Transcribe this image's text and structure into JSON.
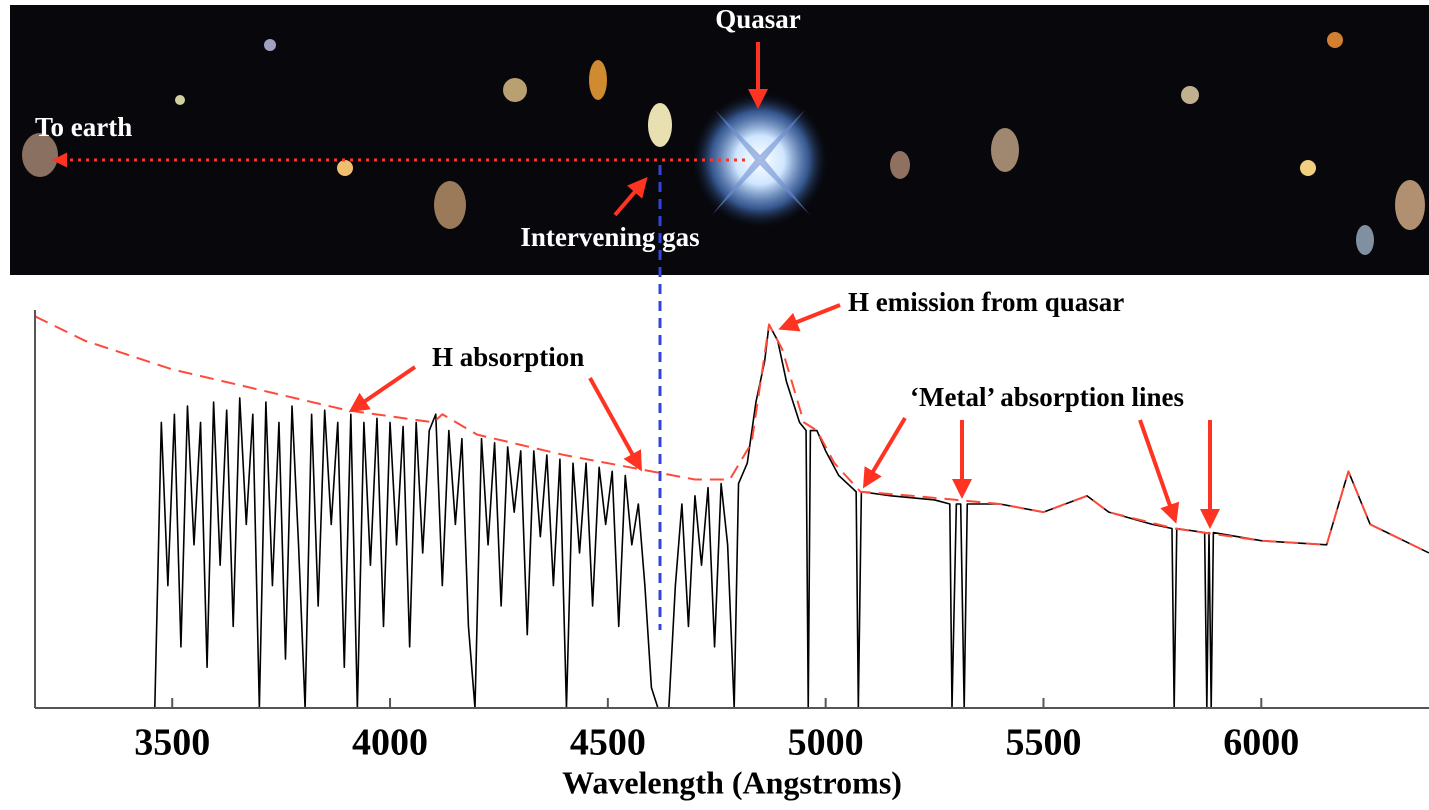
{
  "chart_data": {
    "type": "line",
    "xlabel": "Wavelength (Angstroms)",
    "xlim": [
      3185,
      6385
    ],
    "ylim": [
      0,
      100
    ],
    "xticks": [
      3500,
      4000,
      4500,
      5000,
      5500,
      6000
    ],
    "annotations": [
      "Quasar",
      "To earth",
      "Intervening gas",
      "H emission from quasar",
      "H absorption",
      "‘Metal’ absorption lines"
    ],
    "series": [
      {
        "color": "#ff4a3a",
        "dashed": true,
        "x": [
          3185,
          3300,
          3500,
          3700,
          3900,
          4100,
          4120,
          4200,
          4400,
          4600,
          4700,
          4780,
          4830,
          4870,
          4900,
          4950,
          4980,
          5020,
          5080,
          5200,
          5300,
          5400,
          5500,
          5600,
          5650,
          5800,
          6000,
          6150,
          6200,
          6250,
          6385
        ],
        "values": [
          96,
          90,
          83,
          78,
          73,
          70,
          72,
          67,
          62,
          58,
          56,
          56,
          65,
          94,
          88,
          70,
          68,
          60,
          53,
          52,
          51,
          50,
          48,
          52,
          48,
          44,
          41,
          40,
          58,
          45,
          38
        ]
      },
      {
        "color": "#000000",
        "dashed": false,
        "x": [
          3460,
          3475,
          3490,
          3505,
          3520,
          3535,
          3550,
          3565,
          3580,
          3595,
          3610,
          3625,
          3640,
          3655,
          3670,
          3685,
          3700,
          3715,
          3730,
          3745,
          3760,
          3775,
          3790,
          3805,
          3820,
          3835,
          3850,
          3865,
          3880,
          3895,
          3910,
          3925,
          3940,
          3955,
          3970,
          3985,
          4000,
          4015,
          4030,
          4045,
          4060,
          4075,
          4090,
          4105,
          4120,
          4135,
          4150,
          4165,
          4180,
          4195,
          4210,
          4225,
          4240,
          4255,
          4270,
          4285,
          4300,
          4315,
          4330,
          4345,
          4360,
          4375,
          4390,
          4405,
          4420,
          4435,
          4450,
          4465,
          4480,
          4495,
          4510,
          4525,
          4540,
          4555,
          4570,
          4585,
          4600,
          4615,
          4640,
          4655,
          4670,
          4685,
          4700,
          4715,
          4730,
          4745,
          4760,
          4775,
          4790,
          4800,
          4820,
          4840,
          4860,
          4870,
          4890,
          4910,
          4940,
          4955,
          4960,
          4965,
          4980,
          5000,
          5030,
          5070,
          5075,
          5082,
          5150,
          5250,
          5285,
          5290,
          5300,
          5310,
          5318,
          5325,
          5400,
          5500,
          5600,
          5650,
          5750,
          5795,
          5800,
          5806,
          5870,
          5875,
          5880,
          5885,
          5890,
          6000,
          6150,
          6200,
          6250,
          6385
        ],
        "values": [
          0,
          70,
          30,
          72,
          15,
          74,
          40,
          70,
          10,
          75,
          35,
          73,
          20,
          76,
          45,
          72,
          0,
          75,
          30,
          70,
          12,
          74,
          40,
          0,
          72,
          25,
          73,
          45,
          70,
          10,
          72,
          0,
          70,
          35,
          71,
          20,
          70,
          40,
          69,
          15,
          70,
          38,
          68,
          72,
          30,
          68,
          45,
          66,
          20,
          0,
          66,
          40,
          65,
          25,
          64,
          48,
          63,
          18,
          63,
          42,
          62,
          30,
          61,
          0,
          60,
          38,
          60,
          25,
          59,
          45,
          58,
          20,
          57,
          40,
          50,
          30,
          5,
          0,
          0,
          30,
          50,
          20,
          52,
          35,
          54,
          15,
          55,
          40,
          0,
          55,
          60,
          75,
          85,
          94,
          90,
          80,
          70,
          68,
          0,
          68,
          68,
          63,
          57,
          53,
          0,
          53,
          52,
          51,
          50,
          0,
          50,
          50,
          0,
          50,
          50,
          48,
          52,
          48,
          45,
          44,
          0,
          44,
          43,
          0,
          43,
          0,
          43,
          41,
          40,
          58,
          45,
          38
        ]
      }
    ]
  }
}
